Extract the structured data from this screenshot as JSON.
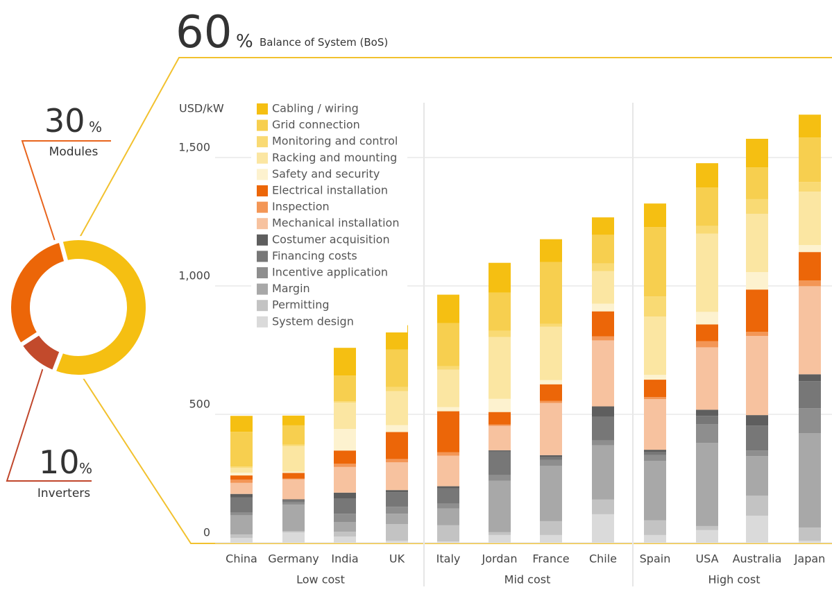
{
  "chart_data": [
    {
      "type": "pie",
      "labels": [
        "Balance of System (BoS)",
        "Inverters",
        "Modules"
      ],
      "values": [
        60,
        10,
        30
      ],
      "value_labels": [
        "60",
        "10",
        "30"
      ],
      "unit": "%",
      "colors": [
        "#f5bf12",
        "#c24a2c",
        "#ec6608"
      ]
    },
    {
      "type": "bar",
      "stacked": true,
      "ylabel": "USD/kW",
      "groups": [
        {
          "name": "Low cost",
          "categories": [
            "China",
            "Germany",
            "India",
            "UK"
          ]
        },
        {
          "name": "Mid cost",
          "categories": [
            "Italy",
            "Jordan",
            "France",
            "Chile"
          ]
        },
        {
          "name": "High cost",
          "categories": [
            "Spain",
            "USA",
            "Australia",
            "Japan"
          ]
        }
      ],
      "ylim": [
        0,
        1700
      ],
      "yticks": [
        0,
        500,
        {
          "value": 1000,
          "label": "1,000"
        },
        {
          "value": 1500,
          "label": "1,500"
        }
      ],
      "grid": true,
      "series": [
        {
          "name": "Cabling / wiring",
          "color": "#f5bf12",
          "values": [
            62,
            38,
            108,
            95,
            111,
            116,
            89,
            68,
            92,
            95,
            111,
            89
          ]
        },
        {
          "name": "Grid connection",
          "color": "#f7cf4f",
          "values": [
            135,
            75,
            100,
            146,
            168,
            149,
            241,
            111,
            270,
            149,
            124,
            173
          ]
        },
        {
          "name": "Monitoring and control",
          "color": "#f9da74",
          "values": [
            5,
            5,
            5,
            16,
            13,
            24,
            11,
            30,
            78,
            30,
            57,
            38
          ]
        },
        {
          "name": "Racking and mounting",
          "color": "#fbe6a2",
          "values": [
            19,
            100,
            103,
            132,
            146,
            241,
            208,
            127,
            227,
            305,
            227,
            208
          ]
        },
        {
          "name": "Safety and security",
          "color": "#fdf2cf",
          "values": [
            11,
            5,
            84,
            27,
            16,
            51,
            16,
            30,
            19,
            49,
            68,
            27
          ]
        },
        {
          "name": "Electrical installation",
          "color": "#ec6608",
          "values": [
            16,
            22,
            51,
            105,
            160,
            49,
            65,
            97,
            68,
            65,
            165,
            111
          ]
        },
        {
          "name": "Inspection",
          "color": "#f39656",
          "values": [
            13,
            3,
            13,
            13,
            13,
            5,
            8,
            16,
            8,
            24,
            16,
            22
          ]
        },
        {
          "name": "Mechanical installation",
          "color": "#f7c29f",
          "values": [
            43,
            78,
            100,
            108,
            119,
            95,
            203,
            257,
            197,
            243,
            308,
            343
          ]
        },
        {
          "name": "Costumer acquisition",
          "color": "#5e5e5e",
          "values": [
            13,
            3,
            22,
            8,
            8,
            5,
            8,
            41,
            8,
            24,
            41,
            27
          ]
        },
        {
          "name": "Financing costs",
          "color": "#777777",
          "values": [
            60,
            8,
            60,
            57,
            60,
            92,
            11,
            92,
            13,
            32,
            97,
            105
          ]
        },
        {
          "name": "Incentive application",
          "color": "#8e8e8e",
          "values": [
            10,
            10,
            32,
            27,
            19,
            22,
            22,
            19,
            22,
            73,
            22,
            97
          ]
        },
        {
          "name": "Margin",
          "color": "#a8a8a8",
          "values": [
            75,
            103,
            38,
            40,
            65,
            200,
            216,
            211,
            232,
            324,
            154,
            368
          ]
        },
        {
          "name": "Permitting",
          "color": "#c3c3c3",
          "values": [
            13,
            5,
            19,
            65,
            63,
            11,
            54,
            57,
            57,
            16,
            78,
            51
          ]
        },
        {
          "name": "System design",
          "color": "#dadada",
          "values": [
            19,
            40,
            24,
            8,
            5,
            30,
            30,
            111,
            30,
            49,
            105,
            8
          ]
        }
      ]
    }
  ]
}
